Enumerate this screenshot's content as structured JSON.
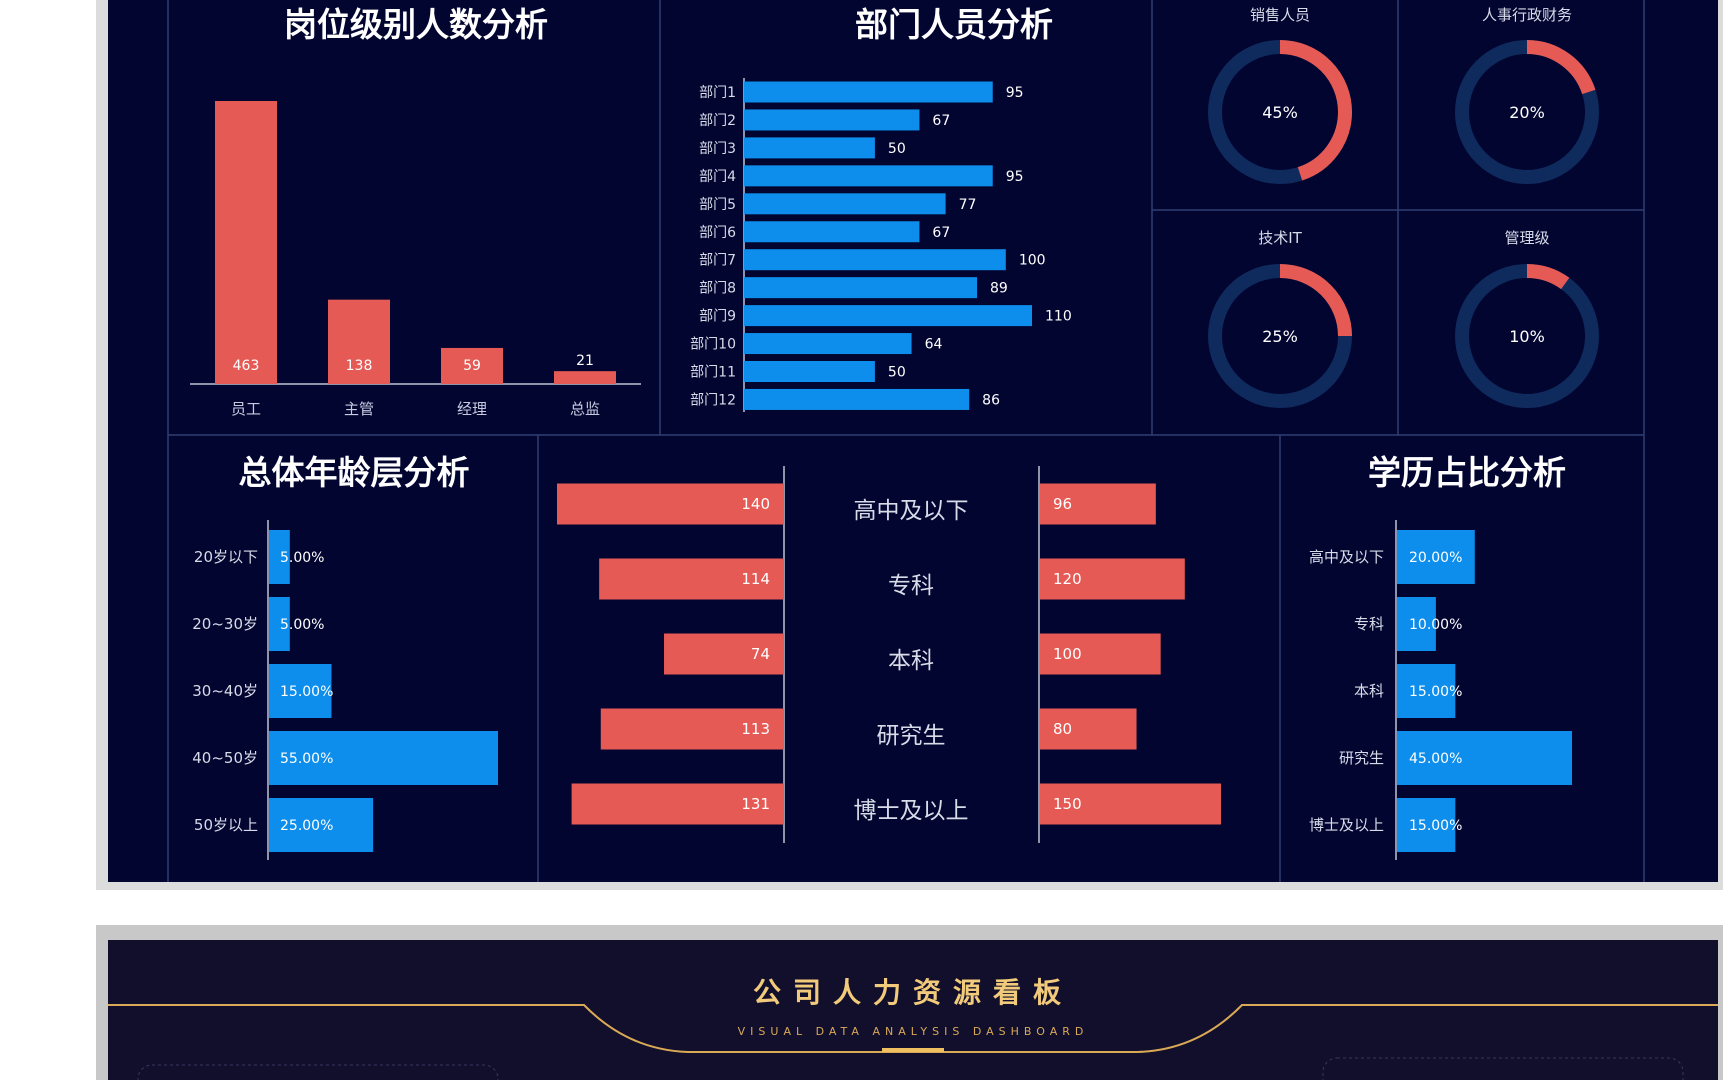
{
  "colors": {
    "background": "#020530",
    "red": "#e55a55",
    "blue": "#0e8eec",
    "ring_track": "#0f2a5c",
    "divider": "#2f3e73",
    "gold": "#d9a956",
    "header_bg": "#120f2c"
  },
  "position_chart": {
    "title": "岗位级别人数分析",
    "categories": [
      "员工",
      "主管",
      "经理",
      "总监"
    ],
    "values": [
      463,
      138,
      59,
      21
    ]
  },
  "dept_chart": {
    "title": "部门人员分析",
    "categories": [
      "部门1",
      "部门2",
      "部门3",
      "部门4",
      "部门5",
      "部门6",
      "部门7",
      "部门8",
      "部门9",
      "部门10",
      "部门11",
      "部门12"
    ],
    "values": [
      95,
      67,
      50,
      95,
      77,
      67,
      100,
      89,
      110,
      64,
      50,
      86
    ]
  },
  "donuts": [
    {
      "label": "销售人员",
      "value": 45,
      "text": "45%"
    },
    {
      "label": "人事行政财务",
      "value": 20,
      "text": "20%"
    },
    {
      "label": "技术IT",
      "value": 25,
      "text": "25%"
    },
    {
      "label": "管理级",
      "value": 10,
      "text": "10%"
    }
  ],
  "age_chart": {
    "title": "总体年龄层分析",
    "categories": [
      "20岁以下",
      "20~30岁",
      "30~40岁",
      "40~50岁",
      "50岁以上"
    ],
    "values": [
      5,
      5,
      15,
      55,
      25
    ],
    "labels": [
      "5.00%",
      "5.00%",
      "15.00%",
      "55.00%",
      "25.00%"
    ]
  },
  "edu_compare": {
    "categories": [
      "高中及以下",
      "专科",
      "本科",
      "研究生",
      "博士及以上"
    ],
    "left_values": [
      140,
      114,
      74,
      113,
      131
    ],
    "right_values": [
      96,
      120,
      100,
      80,
      150
    ]
  },
  "edu_chart": {
    "title": "学历占比分析",
    "categories": [
      "高中及以下",
      "专科",
      "本科",
      "研究生",
      "博士及以上"
    ],
    "values": [
      20,
      10,
      15,
      45,
      15
    ],
    "labels": [
      "20.00%",
      "10.00%",
      "15.00%",
      "45.00%",
      "15.00%"
    ]
  },
  "chart_data": [
    {
      "type": "bar",
      "title": "岗位级别人数分析",
      "categories": [
        "员工",
        "主管",
        "经理",
        "总监"
      ],
      "values": [
        463,
        138,
        59,
        21
      ]
    },
    {
      "type": "bar",
      "orientation": "horizontal",
      "title": "部门人员分析",
      "categories": [
        "部门1",
        "部门2",
        "部门3",
        "部门4",
        "部门5",
        "部门6",
        "部门7",
        "部门8",
        "部门9",
        "部门10",
        "部门11",
        "部门12"
      ],
      "values": [
        95,
        67,
        50,
        95,
        77,
        67,
        100,
        89,
        110,
        64,
        50,
        86
      ]
    },
    {
      "type": "pie",
      "subtype": "donut",
      "title": "销售人员",
      "categories": [
        "销售人员",
        ""
      ],
      "values": [
        45,
        55
      ]
    },
    {
      "type": "pie",
      "subtype": "donut",
      "title": "人事行政财务",
      "categories": [
        "人事行政财务",
        ""
      ],
      "values": [
        20,
        80
      ]
    },
    {
      "type": "pie",
      "subtype": "donut",
      "title": "技术IT",
      "categories": [
        "技术IT",
        ""
      ],
      "values": [
        25,
        75
      ]
    },
    {
      "type": "pie",
      "subtype": "donut",
      "title": "管理级",
      "categories": [
        "管理级",
        ""
      ],
      "values": [
        10,
        90
      ]
    },
    {
      "type": "bar",
      "orientation": "horizontal",
      "title": "总体年龄层分析",
      "categories": [
        "20岁以下",
        "20~30岁",
        "30~40岁",
        "40~50岁",
        "50岁以上"
      ],
      "values": [
        5,
        5,
        15,
        55,
        25
      ],
      "unit": "%"
    },
    {
      "type": "bar",
      "orientation": "horizontal",
      "subtype": "butterfly",
      "categories": [
        "高中及以下",
        "专科",
        "本科",
        "研究生",
        "博士及以上"
      ],
      "series": [
        {
          "values": [
            140,
            114,
            74,
            113,
            131
          ]
        },
        {
          "values": [
            96,
            120,
            100,
            80,
            150
          ]
        }
      ]
    },
    {
      "type": "bar",
      "orientation": "horizontal",
      "title": "学历占比分析",
      "categories": [
        "高中及以下",
        "专科",
        "本科",
        "研究生",
        "博士及以上"
      ],
      "values": [
        20,
        10,
        15,
        45,
        15
      ],
      "unit": "%"
    }
  ],
  "header2": {
    "title": "公司人力资源看板",
    "subtitle": "VISUAL DATA ANALYSIS DASHBOARD"
  }
}
